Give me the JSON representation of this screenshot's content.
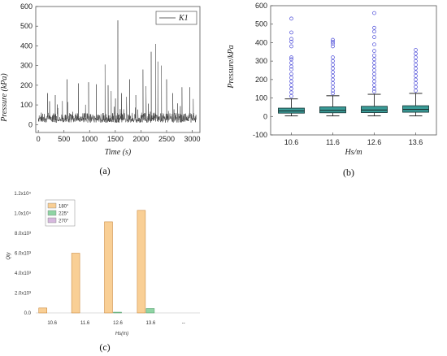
{
  "chart_data": [
    {
      "panel": "(a)",
      "type": "line",
      "legend": [
        "K1"
      ],
      "legend_placement": "top-right",
      "xlabel": "Time (s)",
      "ylabel": "Pressure (kPa)",
      "xlim": [
        -50,
        3150
      ],
      "ylim": [
        -40,
        600
      ],
      "xticks": [
        0,
        500,
        1000,
        1500,
        2000,
        2500,
        3000
      ],
      "yticks": [
        0,
        100,
        200,
        300,
        400,
        500,
        600
      ],
      "series": [
        {
          "name": "K1",
          "baseline_range": [
            20,
            60
          ],
          "peaks": [
            {
              "x": 180,
              "y": 160
            },
            {
              "x": 330,
              "y": 150
            },
            {
              "x": 470,
              "y": 120
            },
            {
              "x": 560,
              "y": 230
            },
            {
              "x": 780,
              "y": 210
            },
            {
              "x": 980,
              "y": 215
            },
            {
              "x": 1130,
              "y": 205
            },
            {
              "x": 1300,
              "y": 305
            },
            {
              "x": 1360,
              "y": 200
            },
            {
              "x": 1420,
              "y": 170
            },
            {
              "x": 1550,
              "y": 530
            },
            {
              "x": 1620,
              "y": 160
            },
            {
              "x": 1780,
              "y": 230
            },
            {
              "x": 1900,
              "y": 150
            },
            {
              "x": 2040,
              "y": 280
            },
            {
              "x": 2100,
              "y": 195
            },
            {
              "x": 2200,
              "y": 370
            },
            {
              "x": 2290,
              "y": 410
            },
            {
              "x": 2330,
              "y": 320
            },
            {
              "x": 2400,
              "y": 300
            },
            {
              "x": 2500,
              "y": 230
            },
            {
              "x": 2620,
              "y": 160
            },
            {
              "x": 2800,
              "y": 190
            },
            {
              "x": 2950,
              "y": 190
            },
            {
              "x": 3020,
              "y": 130
            }
          ]
        }
      ]
    },
    {
      "panel": "(b)",
      "type": "box",
      "xlabel": "Hs/m",
      "ylabel": "Pressure/kPa",
      "ylim": [
        -100,
        600
      ],
      "yticks": [
        -100,
        0,
        100,
        200,
        300,
        400,
        500,
        600
      ],
      "categories": [
        "10.6",
        "11.6",
        "12.6",
        "13.6"
      ],
      "boxes": [
        {
          "whisker_low": 3,
          "q1": 18,
          "median": 30,
          "q3": 45,
          "whisker_high": 95,
          "outliers": [
            110,
            130,
            150,
            170,
            190,
            210,
            230,
            255,
            270,
            290,
            310,
            320,
            380,
            405,
            420,
            455,
            530
          ]
        },
        {
          "whisker_low": 3,
          "q1": 20,
          "median": 33,
          "q3": 52,
          "whisker_high": 112,
          "outliers": [
            125,
            140,
            160,
            180,
            200,
            220,
            240,
            260,
            280,
            300,
            320,
            380,
            395,
            405,
            415
          ]
        },
        {
          "whisker_low": 3,
          "q1": 21,
          "median": 35,
          "q3": 55,
          "whisker_high": 120,
          "outliers": [
            135,
            150,
            170,
            190,
            210,
            230,
            250,
            270,
            290,
            310,
            330,
            355,
            390,
            430,
            460,
            480,
            560
          ]
        },
        {
          "whisker_low": 3,
          "q1": 23,
          "median": 38,
          "q3": 58,
          "whisker_high": 125,
          "outliers": [
            140,
            160,
            180,
            200,
            220,
            240,
            260,
            280,
            300,
            320,
            340,
            360
          ]
        }
      ]
    },
    {
      "panel": "(c)",
      "type": "bar",
      "xlabel": "Hs(m)",
      "ylabel": "Qty",
      "y_tick_labels": [
        "0.0",
        "2.0x10³",
        "4.0x10³",
        "6.0x10³",
        "8.0x10³",
        "1.0x10⁴",
        "1.2x10⁴"
      ],
      "ylim": [
        0,
        12000
      ],
      "categories": [
        "10.6",
        "11.6",
        "12.6",
        "13.6",
        "--"
      ],
      "legend_placement": "top-left",
      "series": [
        {
          "name": "180°",
          "color": "#f9cf95",
          "values": [
            500,
            6000,
            9150,
            10300,
            0
          ]
        },
        {
          "name": "225°",
          "color": "#8fd4a4",
          "values": [
            0,
            0,
            80,
            450,
            0
          ]
        },
        {
          "name": "270°",
          "color": "#d6b8de",
          "values": [
            0,
            0,
            0,
            0,
            0
          ]
        }
      ]
    }
  ],
  "colors": {
    "line": "#3a3a3a",
    "box_fill": "#3a9c98",
    "box_edge": "#1b3f3e",
    "outlier": "#4a4ad8",
    "bar_edge": "#c47e2e"
  }
}
